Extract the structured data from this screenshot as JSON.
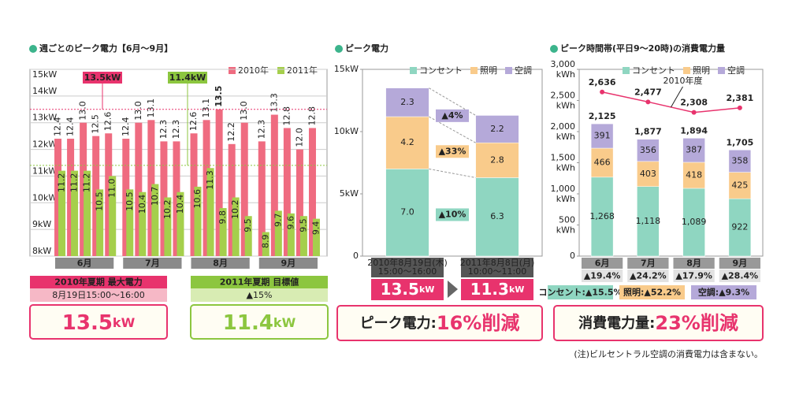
{
  "chart_data": [
    {
      "type": "bar",
      "title": "週ごとのピーク電力【6月～9月】",
      "categories": [
        null,
        null,
        null,
        null,
        null,
        null,
        null,
        null,
        null,
        null,
        null,
        null,
        null,
        null,
        null,
        null,
        null,
        null,
        null,
        null
      ],
      "groups": [
        "6月",
        "7月",
        "8月",
        "9月"
      ],
      "ylim": [
        8,
        15
      ],
      "yticks": [
        {
          "value": 8,
          "label": "8kW"
        },
        {
          "value": 9,
          "label": "9kW"
        },
        {
          "value": 10,
          "label": "10kW"
        },
        {
          "value": 11,
          "label": "11kW"
        },
        {
          "value": 12,
          "label": "12kW"
        },
        {
          "value": 13,
          "label": "13kW"
        },
        {
          "value": 14,
          "label": "14kW"
        },
        {
          "value": 15,
          "label": "15kW"
        }
      ],
      "grid": true,
      "legend": "top-right",
      "series": [
        {
          "name": "2010年",
          "color": "#ef6b80",
          "values": [
            12.4,
            12.4,
            13.0,
            12.5,
            12.6,
            12.4,
            13.0,
            13.1,
            12.3,
            12.3,
            12.6,
            13.1,
            13.5,
            12.2,
            13.0,
            12.3,
            13.3,
            12.8,
            12.0,
            12.8
          ],
          "value_labels": [
            "12.4",
            "12.4",
            "13.0",
            "12.5",
            "12.6",
            "12.4",
            "13.0",
            "13.1",
            "12.3",
            "12.3",
            "12.6",
            "13.1",
            "13.5",
            "12.2",
            "13.0",
            "12.3",
            "13.3",
            "12.8",
            "12.0",
            "12.8"
          ]
        },
        {
          "name": "2011年",
          "color": "#a5cf4c",
          "values": [
            11.2,
            11.2,
            11.2,
            10.5,
            11.0,
            10.5,
            10.4,
            10.7,
            10.2,
            10.4,
            10.6,
            11.3,
            9.8,
            10.2,
            9.5,
            8.9,
            9.7,
            9.6,
            9.5,
            9.4
          ],
          "value_labels": [
            "11.2",
            "11.2",
            "11.2",
            "10.5",
            "11.0",
            "10.5",
            "10.4",
            "10.7",
            "10.2",
            "10.4",
            "10.6",
            "11.3",
            "9.8",
            "10.2",
            "9.5",
            "8.9",
            "9.7",
            "9.6",
            "9.5",
            "9.4"
          ]
        }
      ],
      "reference_lines": [
        {
          "value": 13.5,
          "label": "13.5kW",
          "color": "#e8336d"
        },
        {
          "value": 11.4,
          "label": "11.4kW",
          "color": "#8cc63f"
        }
      ],
      "summary": [
        {
          "header": "2010年夏期 最大電力",
          "subheader": "8月19日15:00～16:00",
          "value": 13.5,
          "unit": "kW",
          "color": "#e8336d",
          "light": "#f6b8c6"
        },
        {
          "header": "2011年夏期 目標値",
          "subheader": "▲15%",
          "value": 11.4,
          "unit": "kW",
          "color": "#8cc63f",
          "light": "#d8ecb3"
        }
      ]
    },
    {
      "type": "stacked_bar",
      "title": "ピーク電力",
      "categories": [
        "2010年8月19日(木)",
        "2011年8月8日(月)"
      ],
      "category_times": [
        "15:00～16:00",
        "10:00～11:00"
      ],
      "ylim": [
        0,
        15
      ],
      "yticks": [
        0,
        {
          "value": 5,
          "label": "5kW"
        },
        {
          "value": 10,
          "label": "10kW"
        },
        {
          "value": 15,
          "label": "15kW"
        }
      ],
      "series": [
        {
          "name": "コンセント",
          "color": "#8fd6c1",
          "values": [
            7.0,
            6.3
          ],
          "value_labels": [
            "7.0",
            "6.3"
          ],
          "change": "▲10%"
        },
        {
          "name": "照明",
          "color": "#f9cb8b",
          "values": [
            4.2,
            2.8
          ],
          "value_labels": [
            "4.2",
            "2.8"
          ],
          "change": "▲33%"
        },
        {
          "name": "空調",
          "color": "#b5a9d9",
          "values": [
            2.3,
            2.2
          ],
          "value_labels": [
            "2.3",
            "2.2"
          ],
          "change": "▲4%"
        }
      ],
      "totals": [
        13.5,
        11.3
      ],
      "total_unit": "kW",
      "footer": {
        "label": "ピーク電力:",
        "value": "16%削減"
      }
    },
    {
      "type": "stacked_bar",
      "title": "ピーク時間帯(平日9～20時)の消費電力量",
      "categories": [
        "6月",
        "7月",
        "8月",
        "9月"
      ],
      "changes": [
        "▲19.4%",
        "▲24.2%",
        "▲17.9%",
        "▲28.4%"
      ],
      "ylim": [
        0,
        3000
      ],
      "yticks": [
        0,
        500,
        {
          "value": 1000,
          "label": "1,000"
        },
        {
          "value": 1500,
          "label": "1,500"
        },
        {
          "value": 2000,
          "label": "2,000"
        },
        {
          "value": 2500,
          "label": "2,500"
        },
        {
          "value": 3000,
          "label": "3,000"
        }
      ],
      "y_unit": "kWh",
      "series": [
        {
          "name": "コンセント",
          "color": "#8fd6c1",
          "values": [
            1268,
            1118,
            1089,
            922
          ],
          "value_labels": [
            "1,268",
            "1,118",
            "1,089",
            "922"
          ],
          "change_label": "コンセント:▲15.5%"
        },
        {
          "name": "照明",
          "color": "#f9cb8b",
          "values": [
            466,
            403,
            418,
            425
          ],
          "value_labels": [
            "466",
            "403",
            "418",
            "425"
          ],
          "change_label": "照明:▲52.2%"
        },
        {
          "name": "空調",
          "color": "#b5a9d9",
          "values": [
            391,
            356,
            387,
            358
          ],
          "value_labels": [
            "391",
            "356",
            "387",
            "358"
          ],
          "change_label": "空調:▲9.3%"
        }
      ],
      "totals": [
        2125,
        1877,
        1894,
        1705
      ],
      "total_labels": [
        "2,125",
        "1,877",
        "1,894",
        "1,705"
      ],
      "total_color": "#1a8fd8",
      "line": {
        "name": "2010年度",
        "color": "#e8336d",
        "values": [
          2636,
          2477,
          2308,
          2381
        ],
        "value_labels": [
          "2,636",
          "2,477",
          "2,308",
          "2,381"
        ]
      },
      "footer": {
        "label": "消費電力量:",
        "value": "23%削減"
      },
      "note": "(注)ビルセントラル空調の消費電力は含まない。"
    }
  ]
}
